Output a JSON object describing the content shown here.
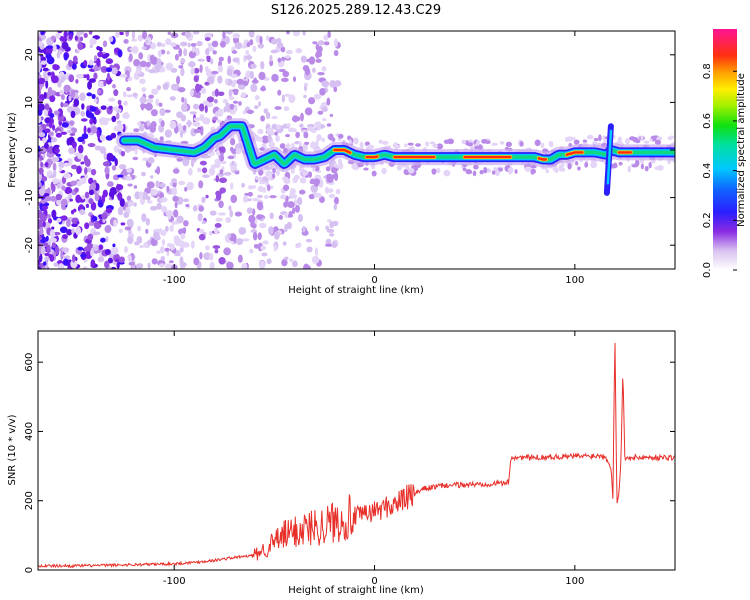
{
  "title": "S126.2025.289.12.43.C29",
  "chart_data": [
    {
      "type": "heatmap",
      "xlabel": "Height of straight line (km)",
      "ylabel": "Frequency (Hz)",
      "xlim": [
        -168,
        150
      ],
      "ylim": [
        -25,
        25
      ],
      "xticks": [
        -100,
        0,
        100
      ],
      "yticks": [
        -20,
        -10,
        0,
        10,
        20
      ],
      "colorbar": {
        "label": "Normalized spectral amplitude",
        "range": [
          0,
          0.97
        ],
        "ticks": [
          0.0,
          0.2,
          0.4,
          0.6,
          0.8
        ]
      },
      "ridge": {
        "x": [
          -125,
          -118,
          -110,
          -100,
          -90,
          -85,
          -80,
          -77,
          -72,
          -66,
          -60,
          -55,
          -50,
          -45,
          -40,
          -35,
          -30,
          -25,
          -20,
          -15,
          -10,
          -5,
          0,
          5,
          10,
          20,
          30,
          40,
          50,
          60,
          70,
          80,
          84,
          88,
          92,
          96,
          100,
          105,
          110,
          116,
          118,
          122,
          130,
          140,
          150
        ],
        "y": [
          2,
          2,
          0.5,
          0,
          -0.5,
          0.5,
          2.5,
          3,
          5,
          5,
          -3,
          -2,
          -1,
          -3,
          -1,
          -2,
          -2,
          -1.5,
          0,
          0,
          -1,
          -1.5,
          -1.5,
          -1,
          -1.5,
          -1.5,
          -1.5,
          -1.5,
          -1.5,
          -1.5,
          -1.5,
          -1.5,
          -2,
          -2,
          -1,
          -1,
          -0.5,
          -0.5,
          -0.5,
          -1,
          0,
          -0.5,
          -0.5,
          -0.5,
          -0.5
        ]
      }
    },
    {
      "type": "line",
      "xlabel": "Height of straight line (km)",
      "ylabel": "SNR (10 * v/v)",
      "xlim": [
        -168,
        150
      ],
      "ylim": [
        0,
        690
      ],
      "xticks": [
        -100,
        0,
        100
      ],
      "yticks": [
        0,
        200,
        400,
        600
      ],
      "series": [
        {
          "name": "SNR",
          "color": "#e8302a",
          "x": [
            -168,
            -150,
            -130,
            -115,
            -100,
            -90,
            -80,
            -70,
            -60,
            -55,
            -50,
            -45,
            -40,
            -35,
            -30,
            -25,
            -20,
            -15,
            -10,
            -5,
            0,
            5,
            10,
            15,
            20,
            25,
            30,
            35,
            40,
            50,
            60,
            67,
            68,
            70,
            80,
            90,
            100,
            110,
            115,
            118,
            119,
            120,
            121,
            122,
            123,
            124,
            125,
            126,
            130,
            140,
            150
          ],
          "y": [
            12,
            12,
            14,
            16,
            18,
            22,
            28,
            36,
            42,
            60,
            80,
            100,
            110,
            120,
            125,
            130,
            140,
            150,
            155,
            160,
            170,
            180,
            190,
            205,
            220,
            235,
            240,
            244,
            245,
            247,
            250,
            252,
            325,
            325,
            325,
            327,
            328,
            330,
            330,
            300,
            210,
            680,
            190,
            220,
            310,
            580,
            315,
            325,
            325,
            325,
            325
          ]
        }
      ]
    }
  ]
}
